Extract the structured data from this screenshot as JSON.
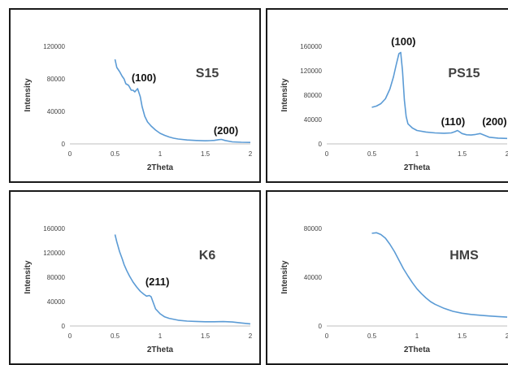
{
  "colors": {
    "line": "#5b9bd5",
    "axis": "#bfbfbf",
    "border": "#1a1a1a"
  },
  "chart_data": [
    {
      "type": "line",
      "title": "S15",
      "xlabel": "2Theta",
      "ylabel": "Intensity",
      "xlim": [
        0,
        2
      ],
      "ylim": [
        0,
        120000
      ],
      "xticks": [
        "0",
        "0.5",
        "1",
        "1.5",
        "2"
      ],
      "yticks": [
        "0",
        "40000",
        "80000",
        "120000"
      ],
      "annotations": [
        {
          "text": "(100)",
          "x": 0.82,
          "y": 77000
        },
        {
          "text": "(200)",
          "x": 1.73,
          "y": 12000
        }
      ],
      "series": [
        {
          "x": [
            0.5,
            0.52,
            0.55,
            0.58,
            0.6,
            0.62,
            0.65,
            0.68,
            0.7,
            0.72,
            0.75,
            0.78,
            0.8,
            0.83,
            0.86,
            0.9,
            0.95,
            1.0,
            1.05,
            1.1,
            1.15,
            1.2,
            1.3,
            1.4,
            1.5,
            1.55,
            1.6,
            1.65,
            1.68,
            1.72,
            1.8,
            1.9,
            2.0
          ],
          "y": [
            104000,
            94000,
            89000,
            83000,
            80000,
            74000,
            72000,
            66000,
            66000,
            64000,
            68000,
            58000,
            46000,
            34000,
            27000,
            22000,
            17000,
            13000,
            10500,
            8500,
            7000,
            6000,
            4800,
            4200,
            3800,
            4000,
            4300,
            5200,
            5500,
            4200,
            2500,
            2000,
            1800
          ]
        }
      ]
    },
    {
      "type": "line",
      "title": "PS15",
      "xlabel": "2Theta",
      "ylabel": "Intensity",
      "xlim": [
        0,
        2
      ],
      "ylim": [
        0,
        160000
      ],
      "xticks": [
        "0",
        "0.5",
        "1",
        "1.5",
        "2"
      ],
      "yticks": [
        "0",
        "40000",
        "80000",
        "120000",
        "160000"
      ],
      "annotations": [
        {
          "text": "(100)",
          "x": 0.85,
          "y": 162000
        },
        {
          "text": "(110)",
          "x": 1.4,
          "y": 31000
        },
        {
          "text": "(200)",
          "x": 1.86,
          "y": 31000
        }
      ],
      "series": [
        {
          "x": [
            0.5,
            0.55,
            0.6,
            0.65,
            0.7,
            0.74,
            0.77,
            0.8,
            0.82,
            0.84,
            0.86,
            0.88,
            0.9,
            0.95,
            1.0,
            1.1,
            1.2,
            1.3,
            1.38,
            1.42,
            1.45,
            1.5,
            1.55,
            1.6,
            1.65,
            1.7,
            1.75,
            1.8,
            1.9,
            2.0
          ],
          "y": [
            60000,
            62000,
            66000,
            74000,
            90000,
            110000,
            130000,
            148000,
            150000,
            120000,
            72000,
            45000,
            33000,
            26000,
            22000,
            19500,
            18000,
            17500,
            18000,
            20000,
            22000,
            17000,
            15000,
            14500,
            15500,
            17000,
            14000,
            11000,
            9500,
            9000
          ]
        }
      ]
    },
    {
      "type": "line",
      "title": "K6",
      "xlabel": "2Theta",
      "ylabel": "Intensity",
      "xlim": [
        0,
        2
      ],
      "ylim": [
        0,
        160000
      ],
      "xticks": [
        "0",
        "0.5",
        "1",
        "1.5",
        "2"
      ],
      "yticks": [
        "0",
        "40000",
        "80000",
        "120000",
        "160000"
      ],
      "annotations": [
        {
          "text": "(211)",
          "x": 0.97,
          "y": 67000
        }
      ],
      "series": [
        {
          "x": [
            0.5,
            0.52,
            0.55,
            0.58,
            0.6,
            0.63,
            0.66,
            0.7,
            0.74,
            0.78,
            0.82,
            0.85,
            0.88,
            0.9,
            0.92,
            0.95,
            1.0,
            1.05,
            1.1,
            1.2,
            1.3,
            1.4,
            1.5,
            1.6,
            1.7,
            1.8,
            1.9,
            2.0
          ],
          "y": [
            150000,
            138000,
            122000,
            110000,
            101000,
            91000,
            82000,
            72000,
            64000,
            57000,
            52000,
            49000,
            50000,
            48000,
            40000,
            28000,
            20000,
            15000,
            12500,
            9500,
            8000,
            7500,
            7000,
            7000,
            7200,
            6500,
            5000,
            3500
          ]
        }
      ]
    },
    {
      "type": "line",
      "title": "HMS",
      "xlabel": "2Theta",
      "ylabel": "Intensity",
      "xlim": [
        0,
        2
      ],
      "ylim": [
        0,
        80000
      ],
      "xticks": [
        "0",
        "0.5",
        "1",
        "1.5",
        "2"
      ],
      "yticks": [
        "0",
        "40000",
        "80000"
      ],
      "annotations": [],
      "series": [
        {
          "x": [
            0.5,
            0.55,
            0.6,
            0.65,
            0.7,
            0.75,
            0.8,
            0.85,
            0.9,
            0.95,
            1.0,
            1.05,
            1.1,
            1.15,
            1.2,
            1.3,
            1.4,
            1.5,
            1.6,
            1.7,
            1.8,
            1.9,
            2.0
          ],
          "y": [
            76000,
            76500,
            75000,
            72000,
            67000,
            61000,
            54000,
            47000,
            41000,
            35500,
            30500,
            26500,
            23000,
            20000,
            17800,
            14500,
            12000,
            10500,
            9500,
            8800,
            8200,
            7700,
            7300
          ]
        }
      ]
    }
  ]
}
